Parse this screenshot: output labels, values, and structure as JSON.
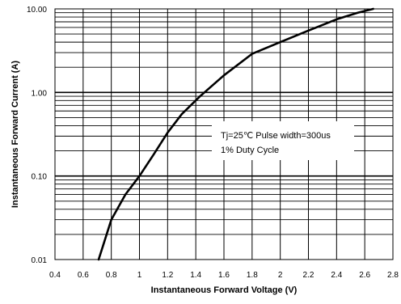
{
  "chart_data": {
    "type": "line",
    "xlabel": "Instantaneous Forward Voltage (V)",
    "ylabel": "Instantaneous Forward Current (A)",
    "xlim": [
      0.4,
      2.8
    ],
    "ylim": [
      0.01,
      10
    ],
    "yscale": "log",
    "grid": true,
    "x_tick_labels": [
      "0.4",
      "0.6",
      "0.8",
      "1",
      "1.2",
      "1.4",
      "1.6",
      "1.8",
      "2",
      "2.2",
      "2.4",
      "2.6",
      "2.8"
    ],
    "y_tick_labels": [
      "0.01",
      "0.10",
      "1.00",
      "10.00"
    ],
    "series": [
      {
        "x": [
          0.71,
          0.8,
          0.9,
          1.0,
          1.1,
          1.2,
          1.3,
          1.43,
          1.6,
          1.8,
          2.0,
          2.2,
          2.4,
          2.55,
          2.66
        ],
        "y": [
          0.01,
          0.03,
          0.06,
          0.1,
          0.18,
          0.33,
          0.55,
          0.9,
          1.6,
          2.9,
          4.0,
          5.5,
          7.5,
          9.0,
          10.0
        ]
      }
    ],
    "annotation": {
      "line1": "Tj=25℃ Pulse width=300us",
      "line2": "1% Duty Cycle"
    },
    "colors": {
      "curve": "#000000",
      "grid": "#000000",
      "background": "#ffffff"
    }
  }
}
